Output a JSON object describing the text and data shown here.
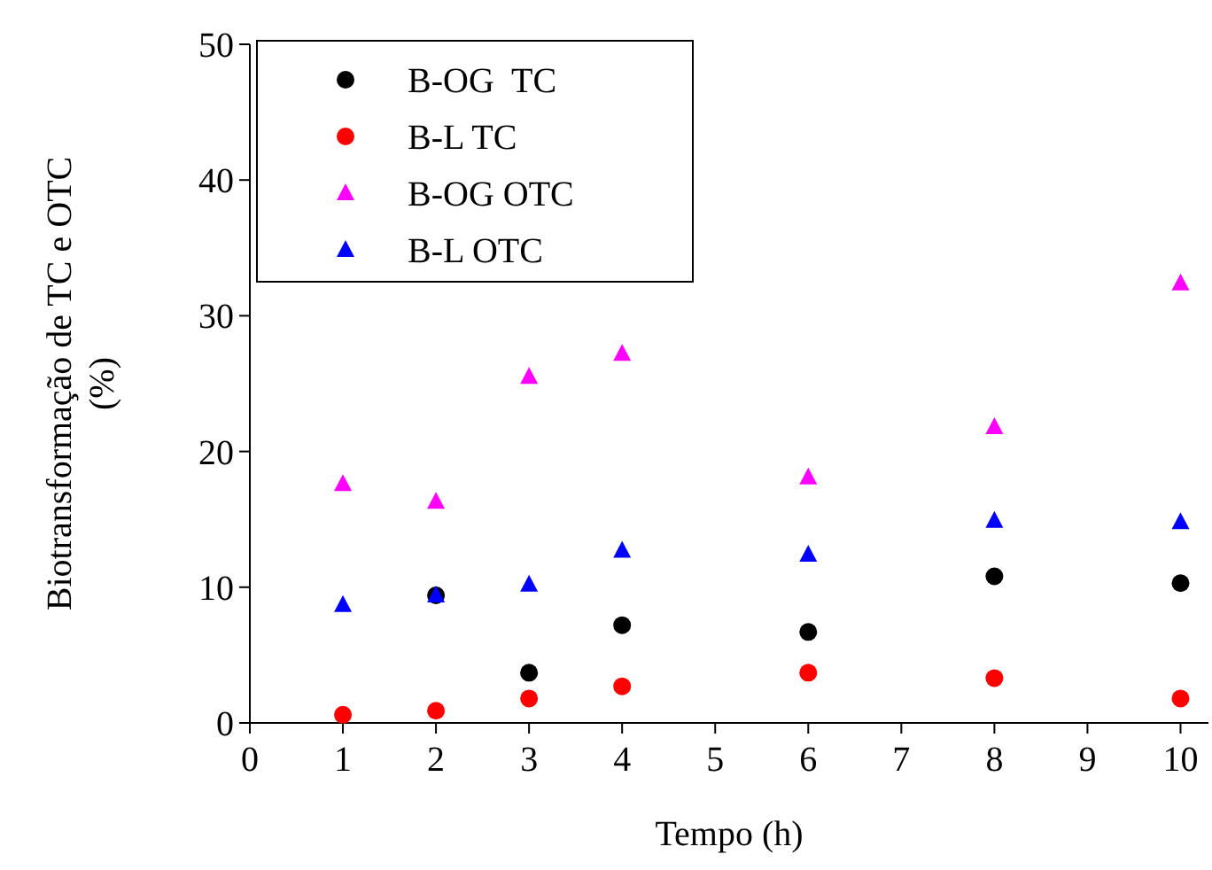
{
  "chart_data": {
    "type": "scatter",
    "xlabel": "Tempo (h)",
    "ylabel": "Biotransformação de TC e OTC (%)",
    "x": [
      1,
      2,
      3,
      4,
      6,
      8,
      10
    ],
    "series": [
      {
        "name": "B-OG  TC",
        "color": "#000000",
        "marker": "circle",
        "values": [
          null,
          9.4,
          3.7,
          7.2,
          6.7,
          10.8,
          10.3
        ]
      },
      {
        "name": "B-L TC",
        "color": "#ff0000",
        "marker": "circle",
        "values": [
          0.6,
          0.9,
          1.8,
          2.7,
          3.7,
          3.3,
          1.8
        ]
      },
      {
        "name": "B-OG OTC",
        "color": "#ff00ff",
        "marker": "triangle",
        "values": [
          17.6,
          16.3,
          25.5,
          27.2,
          18.1,
          21.8,
          32.4
        ]
      },
      {
        "name": "B-L OTC",
        "color": "#0000ff",
        "marker": "triangle",
        "values": [
          8.7,
          9.4,
          10.2,
          12.7,
          12.4,
          14.9,
          14.8
        ]
      }
    ],
    "xlim": [
      0,
      10.3
    ],
    "xticks": [
      0,
      1,
      2,
      3,
      4,
      5,
      6,
      7,
      8,
      9,
      10
    ],
    "ylim": [
      0,
      50
    ],
    "yticks": [
      0,
      10,
      20,
      30,
      40,
      50
    ],
    "legend": "top left",
    "grid": false
  }
}
